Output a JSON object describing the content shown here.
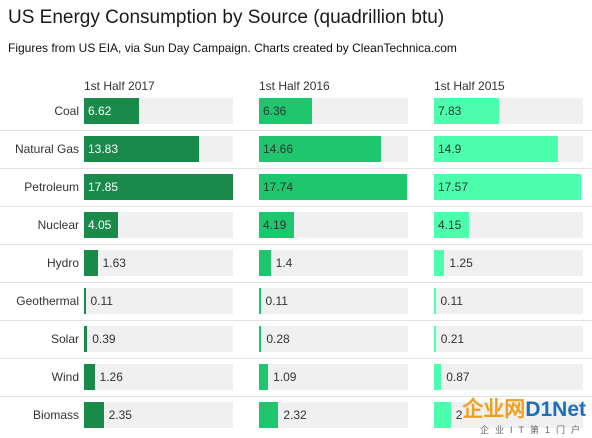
{
  "chart_data": {
    "type": "bar",
    "title": "US Energy Consumption by Source (quadrillion btu)",
    "subtitle": "Figures from US EIA, via Sun Day Campaign. Charts created by CleanTechnica.com",
    "categories": [
      "Coal",
      "Natural Gas",
      "Petroleum",
      "Nuclear",
      "Hydro",
      "Geothermal",
      "Solar",
      "Wind",
      "Biomass"
    ],
    "series": [
      {
        "name": "1st Half 2017",
        "color": "#1a8a4a",
        "values": [
          6.62,
          13.83,
          17.85,
          4.05,
          1.63,
          0.11,
          0.39,
          1.26,
          2.35
        ],
        "labels": [
          "6.62",
          "13.83",
          "17.85",
          "4.05",
          "1.63",
          "0.11",
          "0.39",
          "1.26",
          "2.35"
        ]
      },
      {
        "name": "1st Half 2016",
        "color": "#1ec66e",
        "values": [
          6.36,
          14.66,
          17.74,
          4.19,
          1.4,
          0.11,
          0.28,
          1.09,
          2.32
        ],
        "labels": [
          "6.36",
          "14.66",
          "17.74",
          "4.19",
          "1.4",
          "0.11",
          "0.28",
          "1.09",
          "2.32"
        ]
      },
      {
        "name": "1st Half 2015",
        "color": "#4cffac",
        "values": [
          7.83,
          14.9,
          17.57,
          4.15,
          1.25,
          0.11,
          0.21,
          0.87,
          2.0
        ],
        "labels": [
          "7.83",
          "14.9",
          "17.57",
          "4.15",
          "1.25",
          "0.11",
          "0.21",
          "0.87",
          "2"
        ]
      }
    ],
    "xlim": [
      0,
      17.85
    ],
    "grid": false,
    "legend": "none"
  },
  "watermark": {
    "main_a": "企业网",
    "main_b": "D1Net",
    "sub": "企业IT第1门户"
  }
}
